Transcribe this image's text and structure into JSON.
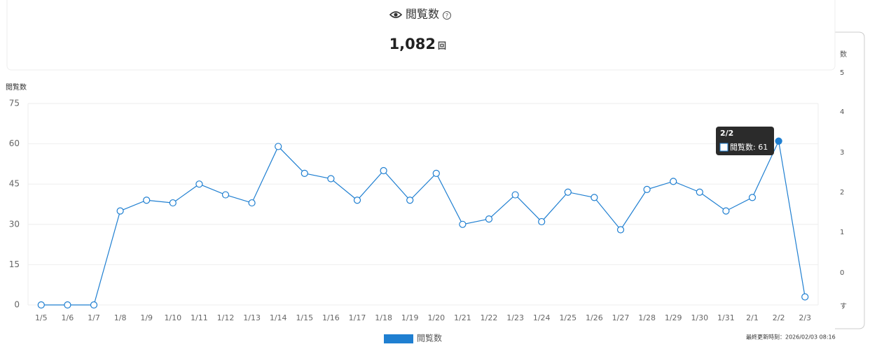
{
  "header": {
    "title": "閲覧数",
    "total": "1,082",
    "unit": "回"
  },
  "chart_data": {
    "type": "line",
    "y_label": "閲覧数",
    "categories": [
      "1/5",
      "1/6",
      "1/7",
      "1/8",
      "1/9",
      "1/10",
      "1/11",
      "1/12",
      "1/13",
      "1/14",
      "1/15",
      "1/16",
      "1/17",
      "1/18",
      "1/19",
      "1/20",
      "1/21",
      "1/22",
      "1/23",
      "1/24",
      "1/25",
      "1/26",
      "1/27",
      "1/28",
      "1/29",
      "1/30",
      "1/31",
      "2/1",
      "2/2",
      "2/3"
    ],
    "series": [
      {
        "name": "閲覧数",
        "color": "#1f7fd1",
        "values": [
          0,
          0,
          0,
          35,
          39,
          38,
          45,
          41,
          38,
          59,
          49,
          47,
          39,
          50,
          39,
          49,
          30,
          32,
          41,
          31,
          42,
          40,
          28,
          43,
          46,
          42,
          35,
          40,
          61,
          3
        ]
      }
    ],
    "ylim": [
      0,
      75
    ],
    "yticks": [
      0,
      15,
      30,
      45,
      60,
      75
    ],
    "grid": true,
    "legend": "bottom"
  },
  "footer": "最終更新時刻：2026/02/03 08:16",
  "side_panel": {
    "labels": [
      "数",
      "5",
      "4",
      "3",
      "2",
      "1",
      "0",
      "す"
    ]
  }
}
